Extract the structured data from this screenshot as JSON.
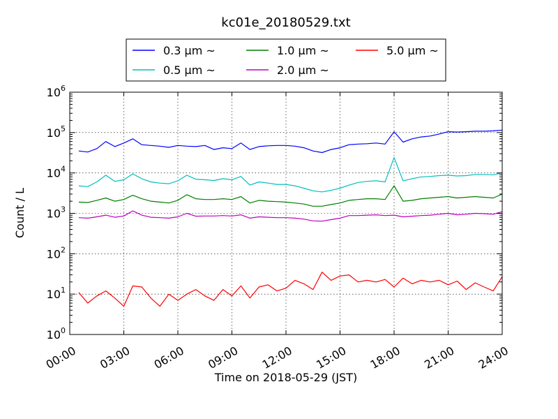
{
  "chart_data": {
    "type": "line",
    "title": "kc01e_20180529.txt",
    "xlabel": "Time on 2018-05-29 (JST)",
    "ylabel": "Count / L",
    "yscale": "log",
    "ylim": [
      1,
      1000000
    ],
    "xlim": [
      0,
      24
    ],
    "x_unit": "hours",
    "x_ticks": [
      "00:00",
      "03:00",
      "06:00",
      "09:00",
      "12:00",
      "15:00",
      "18:00",
      "21:00",
      "24:00"
    ],
    "y_ticks": [
      {
        "base": "10",
        "exp": "0"
      },
      {
        "base": "10",
        "exp": "1"
      },
      {
        "base": "10",
        "exp": "2"
      },
      {
        "base": "10",
        "exp": "3"
      },
      {
        "base": "10",
        "exp": "4"
      },
      {
        "base": "10",
        "exp": "5"
      },
      {
        "base": "10",
        "exp": "6"
      }
    ],
    "grid": true,
    "legend_position": "top-center-outside",
    "x": [
      0.5,
      1,
      1.5,
      2,
      2.5,
      3,
      3.5,
      4,
      4.5,
      5,
      5.5,
      6,
      6.5,
      7,
      7.5,
      8,
      8.5,
      9,
      9.5,
      10,
      10.5,
      11,
      11.5,
      12,
      12.5,
      13,
      13.5,
      14,
      14.5,
      15,
      15.5,
      16,
      16.5,
      17,
      17.5,
      18,
      18.5,
      19,
      19.5,
      20,
      20.5,
      21,
      21.5,
      22,
      22.5,
      23,
      23.5,
      24
    ],
    "series": [
      {
        "name": "0.3 μm ~",
        "color": "#0000ff",
        "values": [
          35000,
          33000,
          40000,
          60000,
          45000,
          55000,
          70000,
          50000,
          48000,
          46000,
          43000,
          48000,
          46000,
          45000,
          48000,
          38000,
          42000,
          40000,
          55000,
          38000,
          45000,
          47000,
          48000,
          48000,
          46000,
          42000,
          35000,
          32000,
          38000,
          42000,
          50000,
          52000,
          53000,
          55000,
          52000,
          105000,
          58000,
          70000,
          78000,
          82000,
          92000,
          105000,
          103000,
          105000,
          108000,
          108000,
          110000,
          115000
        ]
      },
      {
        "name": "0.5 μm ~",
        "color": "#00bfbf",
        "values": [
          4800,
          4600,
          6000,
          8800,
          6200,
          6800,
          9500,
          7200,
          6000,
          5600,
          5400,
          6400,
          8800,
          7000,
          6800,
          6500,
          7200,
          6800,
          8200,
          5000,
          6000,
          5600,
          5200,
          5200,
          4800,
          4200,
          3600,
          3400,
          3700,
          4200,
          5000,
          5800,
          6200,
          6400,
          6000,
          24000,
          6400,
          7200,
          8000,
          8200,
          8600,
          8800,
          8400,
          8600,
          9200,
          9200,
          9000,
          10000
        ]
      },
      {
        "name": "1.0 μm ~",
        "color": "#007f00",
        "values": [
          1900,
          1850,
          2100,
          2400,
          2000,
          2200,
          2800,
          2300,
          2000,
          1900,
          1800,
          2100,
          2900,
          2300,
          2200,
          2200,
          2300,
          2200,
          2600,
          1800,
          2100,
          2000,
          1950,
          1900,
          1800,
          1700,
          1500,
          1500,
          1650,
          1800,
          2100,
          2200,
          2300,
          2300,
          2200,
          4800,
          2000,
          2100,
          2300,
          2400,
          2500,
          2600,
          2400,
          2500,
          2600,
          2500,
          2400,
          3000
        ]
      },
      {
        "name": "2.0 μm ~",
        "color": "#bf00bf",
        "values": [
          780,
          760,
          820,
          900,
          800,
          860,
          1150,
          900,
          800,
          780,
          760,
          820,
          1000,
          850,
          860,
          860,
          880,
          860,
          920,
          760,
          820,
          800,
          780,
          780,
          760,
          720,
          650,
          640,
          700,
          760,
          880,
          880,
          900,
          920,
          880,
          900,
          820,
          850,
          880,
          900,
          950,
          1000,
          920,
          950,
          1000,
          980,
          950,
          1100
        ]
      },
      {
        "name": "5.0 μm ~",
        "color": "#ff0000",
        "values": [
          11,
          6,
          9,
          12,
          8,
          5,
          16,
          15,
          8,
          5,
          10,
          7,
          10,
          13,
          9,
          7,
          13,
          9,
          16,
          8,
          15,
          17,
          12,
          14,
          22,
          18,
          13,
          35,
          22,
          28,
          30,
          20,
          22,
          20,
          23,
          15,
          25,
          18,
          22,
          20,
          22,
          17,
          21,
          13,
          19,
          15,
          12,
          27
        ]
      }
    ]
  }
}
